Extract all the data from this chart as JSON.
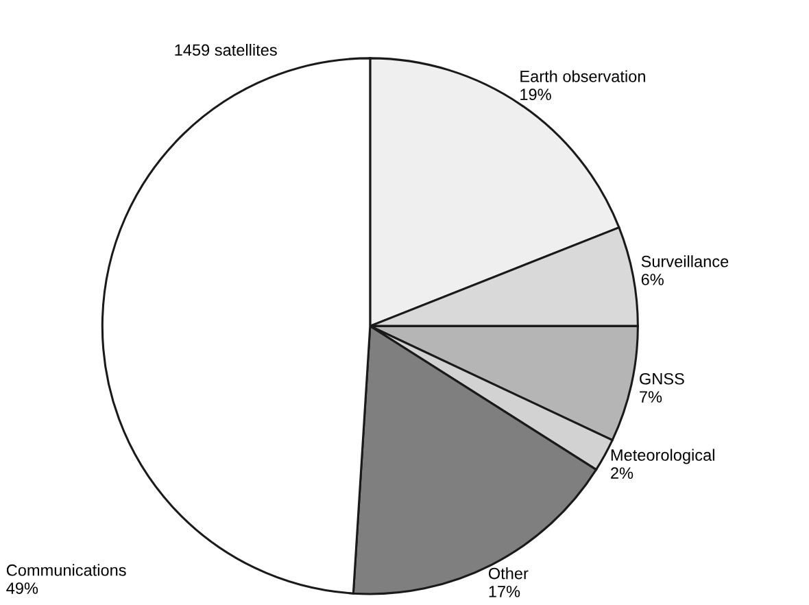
{
  "chart_data": {
    "type": "pie",
    "categories": [
      "Earth observation",
      "Surveillance",
      "GNSS",
      "Meteorological",
      "Other",
      "Communications"
    ],
    "values": [
      19,
      6,
      7,
      2,
      17,
      49
    ],
    "value_labels": [
      "19%",
      "6%",
      "7%",
      "2%",
      "17%",
      "49%"
    ],
    "colors": [
      "#efefef",
      "#d9d9d9",
      "#b5b5b5",
      "#d2d2d2",
      "#7f7f7f",
      "#ffffff"
    ],
    "annotations": [
      "1459 satellites"
    ]
  }
}
